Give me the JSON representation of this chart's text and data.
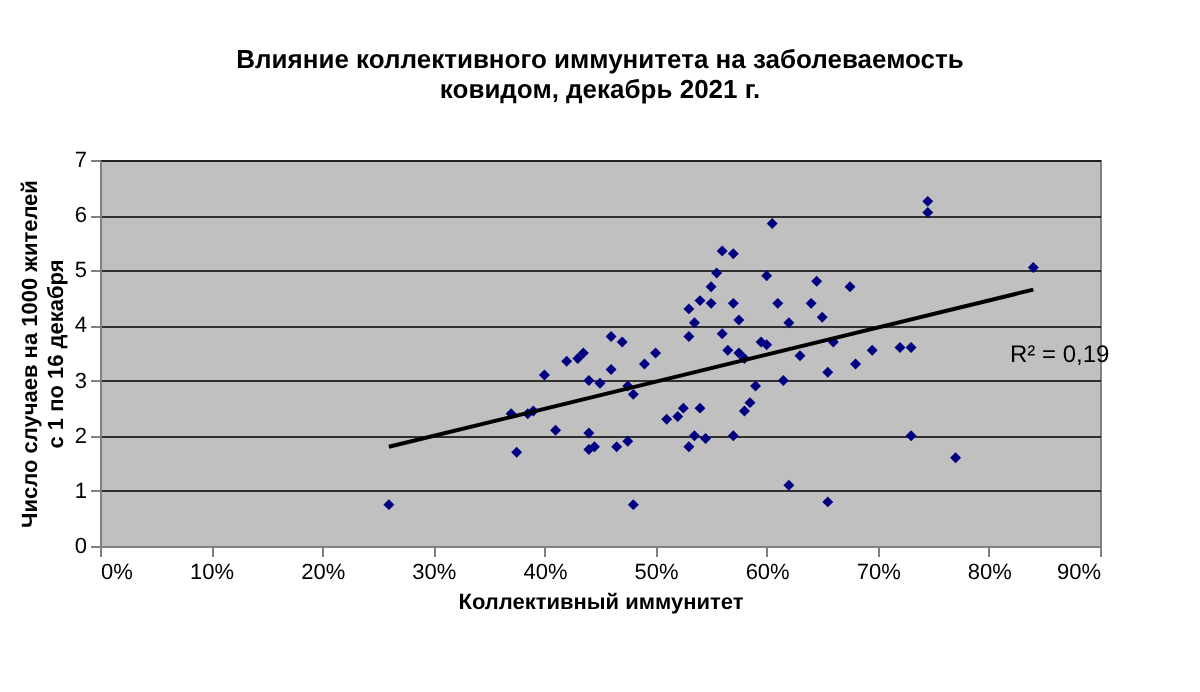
{
  "chart_data": {
    "type": "scatter",
    "title": "Влияние коллективного иммунитета на заболеваемость\nковидом, декабрь 2021 г.",
    "xlabel": "Коллективный иммунитет",
    "ylabel": "Число случаев на 1000 жителей\nс 1 по 16 декабря",
    "x": [
      26,
      37,
      37.5,
      38.5,
      39,
      40,
      41,
      42,
      43,
      43.5,
      44,
      44,
      44,
      44.5,
      45,
      46,
      46,
      47,
      47.5,
      48,
      48,
      47.5,
      49,
      50,
      51,
      52,
      53,
      53,
      53.5,
      54,
      52.5,
      53,
      53.5,
      54,
      54.5,
      55,
      55,
      55.5,
      56,
      56,
      56.5,
      57,
      57,
      57.5,
      57.5,
      58,
      58,
      58.5,
      59,
      59.5,
      60,
      60.5,
      60,
      61,
      61.5,
      62,
      62,
      63,
      64,
      64.5,
      65,
      65.5,
      65.5,
      66,
      67.5,
      68,
      69.5,
      72,
      73,
      73,
      74.5,
      74.5,
      77,
      84,
      57,
      46.5
    ],
    "series": [
      {
        "color": "#000080",
        "marker": "diamond",
        "values": [
          0.75,
          2.4,
          1.7,
          2.4,
          2.45,
          3.1,
          2.1,
          3.35,
          3.4,
          3.5,
          3.0,
          2.05,
          1.75,
          1.8,
          2.95,
          3.2,
          3.8,
          3.7,
          2.9,
          2.75,
          0.75,
          1.9,
          3.3,
          3.5,
          2.3,
          2.35,
          4.3,
          3.8,
          4.05,
          4.45,
          2.5,
          1.8,
          2.0,
          2.5,
          1.95,
          4.7,
          4.4,
          4.95,
          5.35,
          3.85,
          3.55,
          5.3,
          4.4,
          4.1,
          3.5,
          3.4,
          2.45,
          2.6,
          2.9,
          3.7,
          3.65,
          5.85,
          4.9,
          4.4,
          3.0,
          4.05,
          1.1,
          3.45,
          4.4,
          4.8,
          4.15,
          3.15,
          0.8,
          3.7,
          4.7,
          3.3,
          3.55,
          3.6,
          3.6,
          2.0,
          6.25,
          6.05,
          1.6,
          5.05,
          2.0,
          1.8
        ]
      },
      {
        "type": "line",
        "color": "#000000",
        "line_style": "solid",
        "marker": "none",
        "x": [
          26,
          84
        ],
        "values": [
          1.8,
          4.65
        ]
      }
    ],
    "annotations": [
      "R² = 0,19"
    ],
    "xlim": [
      0,
      90
    ],
    "xticks": [
      {
        "value": 0,
        "label": "0%"
      },
      {
        "value": 10,
        "label": "10%"
      },
      {
        "value": 20,
        "label": "20%"
      },
      {
        "value": 30,
        "label": "30%"
      },
      {
        "value": 40,
        "label": "40%"
      },
      {
        "value": 50,
        "label": "50%"
      },
      {
        "value": 60,
        "label": "60%"
      },
      {
        "value": 70,
        "label": "70%"
      },
      {
        "value": 80,
        "label": "80%"
      },
      {
        "value": 90,
        "label": "90%"
      }
    ],
    "ylim": [
      0,
      7
    ],
    "yticks": [
      0,
      1,
      2,
      3,
      4,
      5,
      6,
      7
    ],
    "grid": "y",
    "legend": false
  }
}
